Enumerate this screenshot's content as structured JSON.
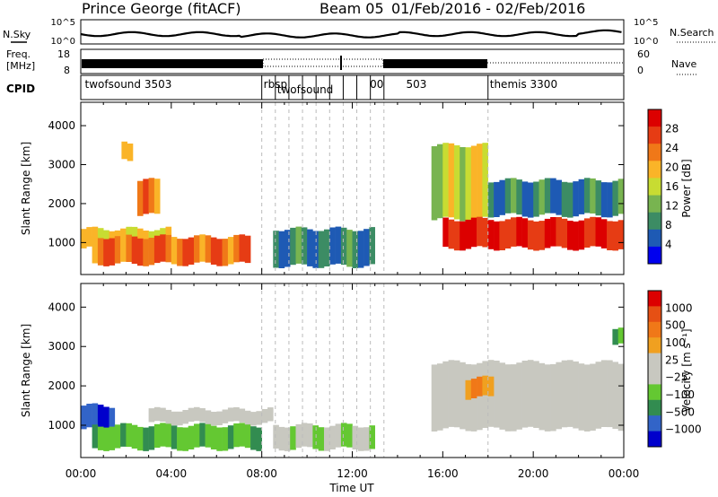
{
  "header": {
    "title": "Prince George (fitACF)",
    "beam": "Beam 05",
    "date_range": "01/Feb/2016 - 02/Feb/2016"
  },
  "summary_panels": {
    "sky_label": "N.Sky",
    "sky_ticks": [
      "10^5",
      "10^0"
    ],
    "search_label": "N.Search",
    "search_ticks": [
      "10^5",
      "10^0"
    ],
    "freq_label": [
      "Freq.",
      "[MHz]"
    ],
    "freq_ticks": [
      "18",
      "8"
    ],
    "nave_label": "Nave",
    "nave_ticks": [
      "60",
      "0"
    ],
    "cpid_label": "CPID",
    "cpid_entries": [
      {
        "text": "twofsound 3503",
        "hour": 0.1
      },
      {
        "text": "rbsp",
        "hour": 8.0
      },
      {
        "text": "twofsound",
        "hour": 8.6
      },
      {
        "text": "00",
        "hour": 12.7
      },
      {
        "text": "503",
        "hour": 14.3
      },
      {
        "text": "themis 3300",
        "hour": 18.0
      }
    ],
    "mode_change_hours": [
      8.0,
      8.6,
      9.2,
      9.8,
      10.4,
      11.0,
      11.6,
      12.2,
      12.8,
      13.4,
      18.0
    ]
  },
  "colors": {
    "power_scale": [
      "#0000ee",
      "#1e5ab4",
      "#3c8c64",
      "#78b450",
      "#c8dc32",
      "#fab428",
      "#f07818",
      "#e63c14",
      "#dc0000"
    ],
    "velocity_scale": [
      "#0000cc",
      "#3264c8",
      "#328c50",
      "#64c832",
      "#c8c8c0",
      "#c8c8c0",
      "#f0a020",
      "#f07818",
      "#e65014",
      "#dc0000"
    ]
  },
  "chart_data": [
    {
      "type": "heatmap",
      "title": "Power",
      "xlabel": "",
      "ylabel": "Slant Range [km]",
      "xlim": [
        0,
        24
      ],
      "ylim": [
        180,
        4600
      ],
      "x_ticks": [
        "00:00",
        "04:00",
        "08:00",
        "12:00",
        "16:00",
        "20:00",
        "00:00"
      ],
      "y_ticks": [
        1000,
        2000,
        3000,
        4000
      ],
      "colorbar": {
        "label": "Power [dB]",
        "ticks": [
          "28",
          "24",
          "20",
          "16",
          "12",
          "8",
          "4"
        ],
        "range": [
          0,
          32
        ]
      },
      "echo_bands": [
        {
          "hours": [
            0.0,
            4.0
          ],
          "range_km": [
            850,
            1350
          ],
          "value": 18
        },
        {
          "hours": [
            0.5,
            7.5
          ],
          "range_km": [
            450,
            1150
          ],
          "value": 24
        },
        {
          "hours": [
            1.8,
            2.3
          ],
          "range_km": [
            3100,
            3550
          ],
          "value": 18
        },
        {
          "hours": [
            2.5,
            3.3
          ],
          "range_km": [
            1700,
            2600
          ],
          "value": 22
        },
        {
          "hours": [
            8.5,
            13.0
          ],
          "range_km": [
            400,
            1350
          ],
          "value": 8
        },
        {
          "hours": [
            15.5,
            17.8
          ],
          "range_km": [
            1600,
            3500
          ],
          "value": 16
        },
        {
          "hours": [
            16.0,
            24.0
          ],
          "range_km": [
            850,
            1600
          ],
          "value": 28
        },
        {
          "hours": [
            18.0,
            24.0
          ],
          "range_km": [
            1700,
            2600
          ],
          "value": 8
        }
      ]
    },
    {
      "type": "heatmap",
      "title": "Velocity",
      "xlabel": "Time UT",
      "ylabel": "Slant Range [km]",
      "xlim": [
        0,
        24
      ],
      "ylim": [
        180,
        4600
      ],
      "x_ticks": [
        "00:00",
        "04:00",
        "08:00",
        "12:00",
        "16:00",
        "20:00",
        "00:00"
      ],
      "y_ticks": [
        1000,
        2000,
        3000,
        4000
      ],
      "colorbar": {
        "label": "Velocity [m s⁻¹]",
        "ticks": [
          "1000",
          "500",
          "100",
          "25",
          "−25",
          "−100",
          "−500",
          "−1000"
        ],
        "range": [
          -1200,
          1200
        ]
      },
      "echo_bands": [
        {
          "hours": [
            0.0,
            1.5
          ],
          "range_km": [
            900,
            1500
          ],
          "value": -900
        },
        {
          "hours": [
            0.5,
            7.8
          ],
          "range_km": [
            400,
            1000
          ],
          "value": -400
        },
        {
          "hours": [
            3.0,
            8.5
          ],
          "range_km": [
            1050,
            1400
          ],
          "value": 0
        },
        {
          "hours": [
            8.5,
            13.0
          ],
          "range_km": [
            400,
            1000
          ],
          "value": -200
        },
        {
          "hours": [
            15.5,
            24.0
          ],
          "range_km": [
            900,
            2600
          ],
          "value": 0
        },
        {
          "hours": [
            17.0,
            18.2
          ],
          "range_km": [
            1700,
            2200
          ],
          "value": 400
        },
        {
          "hours": [
            23.5,
            24.0
          ],
          "range_km": [
            3100,
            3500
          ],
          "value": -400
        }
      ]
    }
  ]
}
